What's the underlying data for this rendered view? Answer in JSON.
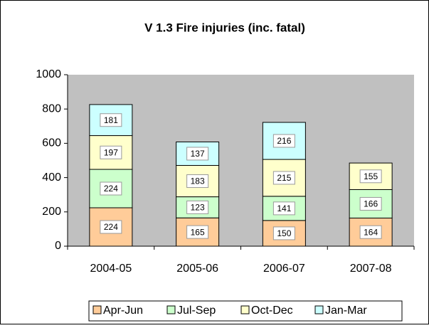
{
  "chart_data": {
    "type": "bar",
    "stacked": true,
    "title": "V 1.3 Fire injuries (inc. fatal)",
    "categories": [
      "2004-05",
      "2005-06",
      "2006-07",
      "2007-08"
    ],
    "series": [
      {
        "name": "Apr-Jun",
        "color": "#ffcc99",
        "values": [
          224,
          165,
          150,
          164
        ]
      },
      {
        "name": "Jul-Sep",
        "color": "#ccffcc",
        "values": [
          224,
          123,
          141,
          166
        ]
      },
      {
        "name": "Oct-Dec",
        "color": "#ffffcc",
        "values": [
          197,
          183,
          215,
          155
        ]
      },
      {
        "name": "Jan-Mar",
        "color": "#ccffff",
        "values": [
          181,
          137,
          216,
          null
        ]
      }
    ],
    "ylim": [
      0,
      1000
    ],
    "yticks": [
      0,
      200,
      400,
      600,
      800,
      1000
    ],
    "plot_background": "#c0c0c0",
    "legend": "bottom"
  }
}
